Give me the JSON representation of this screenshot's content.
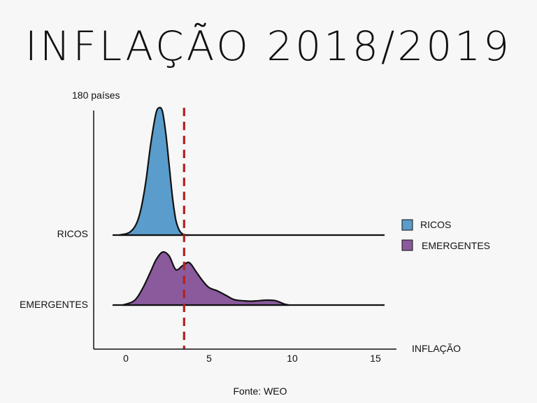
{
  "chart_data": {
    "type": "area",
    "title": "INFLAÇÃO 2018/2019",
    "ylabel": "180 países",
    "xlabel": "INFLAÇÃO",
    "source": "Fonte: WEO",
    "xlim": [
      -2,
      16
    ],
    "x_ticks": [
      0,
      5,
      10,
      15
    ],
    "reference_line": {
      "x": 3.5,
      "style": "dashed",
      "color": "#b22222"
    },
    "legend_position": "right",
    "grid": false,
    "series": [
      {
        "name": "RICOS",
        "color": "#5a9ccb",
        "x": [
          -0.4,
          0.2,
          0.6,
          0.9,
          1.2,
          1.5,
          1.8,
          2.0,
          2.2,
          2.4,
          2.6,
          2.8,
          3.0,
          3.2,
          3.4,
          3.6,
          3.8
        ],
        "y": [
          0.0,
          0.02,
          0.08,
          0.2,
          0.42,
          0.72,
          0.95,
          1.0,
          0.97,
          0.8,
          0.55,
          0.3,
          0.12,
          0.04,
          0.01,
          0.0,
          0.0
        ]
      },
      {
        "name": "EMERGENTES",
        "color": "#8a5a9c",
        "x": [
          -0.2,
          0.5,
          1.0,
          1.5,
          1.8,
          2.2,
          2.6,
          3.0,
          3.4,
          3.8,
          4.2,
          4.6,
          5.0,
          5.5,
          6.0,
          6.5,
          7.0,
          7.5,
          8.0,
          8.5,
          9.0,
          9.5,
          9.8
        ],
        "y": [
          0.0,
          0.08,
          0.3,
          0.62,
          0.82,
          0.97,
          0.9,
          0.65,
          0.72,
          0.78,
          0.62,
          0.45,
          0.32,
          0.26,
          0.18,
          0.1,
          0.08,
          0.07,
          0.08,
          0.09,
          0.08,
          0.02,
          0.0
        ]
      }
    ]
  }
}
